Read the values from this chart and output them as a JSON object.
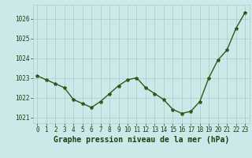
{
  "x": [
    0,
    1,
    2,
    3,
    4,
    5,
    6,
    7,
    8,
    9,
    10,
    11,
    12,
    13,
    14,
    15,
    16,
    17,
    18,
    19,
    20,
    21,
    22,
    23
  ],
  "y": [
    1023.1,
    1022.9,
    1022.7,
    1022.5,
    1021.9,
    1021.7,
    1021.5,
    1021.8,
    1022.2,
    1022.6,
    1022.9,
    1023.0,
    1022.5,
    1022.2,
    1021.9,
    1021.4,
    1021.2,
    1021.3,
    1021.8,
    1023.0,
    1023.9,
    1024.4,
    1025.5,
    1026.3
  ],
  "line_color": "#2d5a1b",
  "marker": "*",
  "background_color": "#cce8e8",
  "grid_color": "#aacccc",
  "title": "Graphe pression niveau de la mer (hPa)",
  "title_color": "#1a4010",
  "ylim": [
    1020.7,
    1026.7
  ],
  "yticks": [
    1021,
    1022,
    1023,
    1024,
    1025,
    1026
  ],
  "xticks": [
    0,
    1,
    2,
    3,
    4,
    5,
    6,
    7,
    8,
    9,
    10,
    11,
    12,
    13,
    14,
    15,
    16,
    17,
    18,
    19,
    20,
    21,
    22,
    23
  ],
  "tick_labelsize": 5.5,
  "title_fontsize": 7.0,
  "linewidth": 1.0,
  "markersize": 3.0
}
